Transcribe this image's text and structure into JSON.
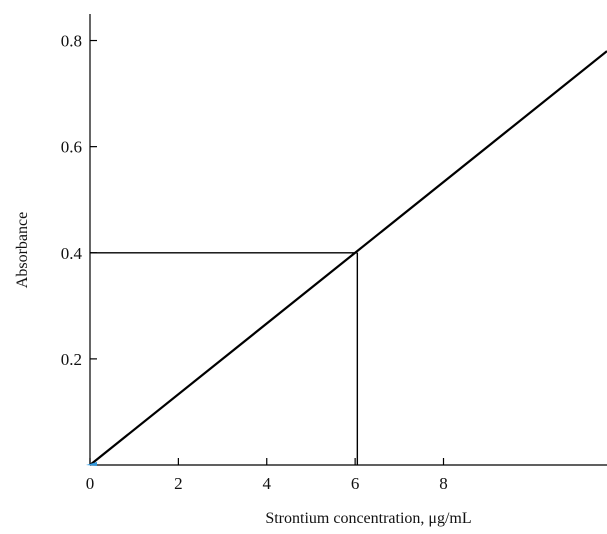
{
  "chart_data": {
    "type": "line",
    "xlabel": "Strontium concentration, μg/mL",
    "ylabel": "Absorbance",
    "xlim": [
      0,
      11.7
    ],
    "ylim": [
      0,
      0.85
    ],
    "x_ticks": [
      0,
      2,
      4,
      6,
      8
    ],
    "x_tick_labels": [
      "0",
      "2",
      "4",
      "6",
      "8"
    ],
    "y_ticks": [
      0.2,
      0.4,
      0.6,
      0.8
    ],
    "y_tick_labels": [
      "0.2",
      "0.4",
      "0.6",
      "0.8"
    ],
    "grid": false,
    "series": [
      {
        "x": [
          0,
          11.7
        ],
        "y": [
          0,
          0.78
        ]
      }
    ],
    "guide_lines": [
      {
        "from": [
          0,
          0.4
        ],
        "to": [
          6.05,
          0.4
        ]
      },
      {
        "from": [
          6.05,
          0.4
        ],
        "to": [
          6.05,
          0
        ]
      }
    ],
    "colors": {
      "line": "#000000",
      "origin_marker": "#3399dd"
    }
  }
}
